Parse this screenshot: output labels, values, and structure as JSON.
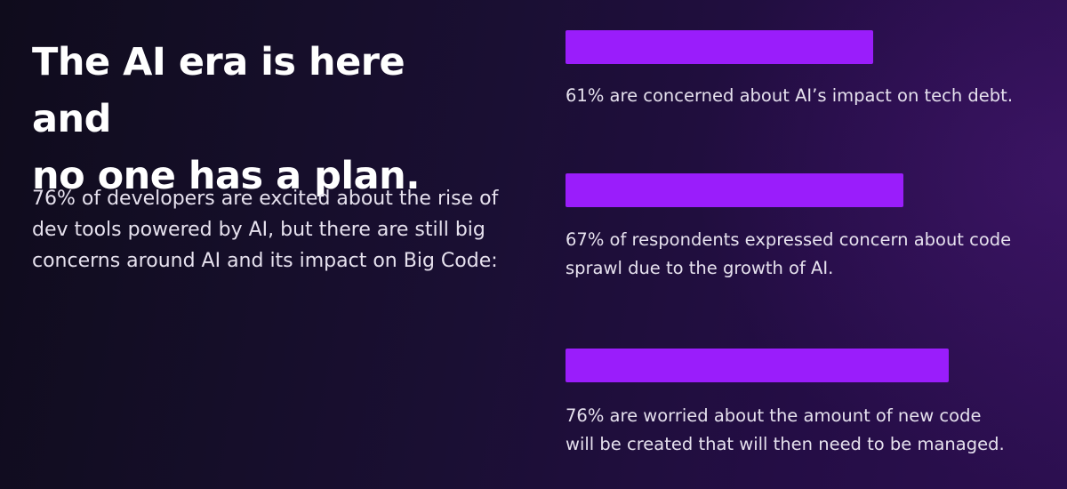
{
  "headline": "The AI era is here and no one has a plan.",
  "intro": "76% of developers are excited about the rise of dev tools powered by AI, but there are still big concerns around AI and its impact on Big Code:",
  "colors": {
    "bar": "#9a1dfb",
    "background_dark": "#0f0c1c",
    "background_purple": "#2c0f50"
  },
  "chart_data": {
    "type": "bar",
    "orientation": "horizontal",
    "scale_max_percent": 100,
    "categories": [
      "61% are concerned about AI’s impact on tech debt.",
      "67% of respondents expressed concern about code sprawl due to the growth of AI.",
      "76% are worried about the amount of new code will be created that will then need to be managed."
    ],
    "values": [
      61,
      67,
      76
    ],
    "unit": "%",
    "grid": false,
    "legend": "none"
  }
}
